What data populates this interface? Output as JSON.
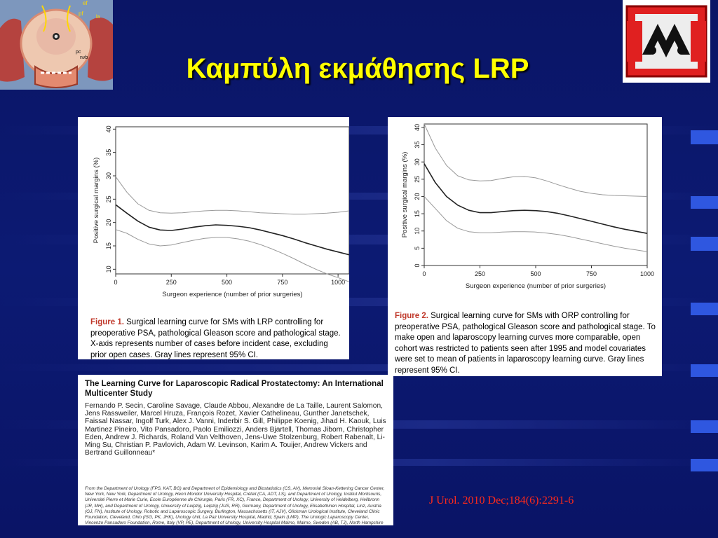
{
  "slide": {
    "title": "Καμπύλη εκμάθησης LRP",
    "citation": "J Urol. 2010 Dec;184(6):2291-6"
  },
  "anatomy": {
    "labels": [
      "ef",
      "pf",
      "la",
      "pc",
      "nvb"
    ]
  },
  "figure1": {
    "caption_label": "Figure 1.",
    "caption_text": "Surgical learning curve for SMs with LRP controlling for preoperative PSA, pathological Gleason score and pathological stage. X-axis represents number of cases before incident case, excluding prior open cases. Gray lines represent 95% CI."
  },
  "figure2": {
    "caption_label": "Figure 2.",
    "caption_text": "Surgical learning curve for SMs with ORP controlling for preoperative PSA, pathological Gleason score and pathological stage. To make open and laparoscopy learning curves more comparable, open cohort was restricted to patients seen after 1995 and model covariates were set to mean of patients in laparoscopy learning curve. Gray lines represent 95% CI."
  },
  "paper": {
    "title": "The Learning Curve for Laparoscopic Radical Prostatectomy: An International Multicenter Study",
    "authors": "Fernando P. Secin, Caroline Savage, Claude Abbou, Alexandre de La Taille, Laurent Salomon, Jens Rassweiler, Marcel Hruza, François Rozet, Xavier Cathelineau, Gunther Janetschek, Faissal Nassar, Ingolf Turk, Alex J. Vanni, Inderbir S. Gill, Philippe Koenig, Jihad H. Kaouk, Luis Martinez Pineiro, Vito Pansadoro, Paolo Emiliozzi, Anders Bjartell, Thomas Jiborn, Christopher Eden, Andrew J. Richards, Roland Van Velthoven, Jens-Uwe Stolzenburg, Robert Rabenalt, Li-Ming Su, Christian P. Pavlovich, Adam W. Levinson, Karim A. Touijer, Andrew Vickers and Bertrand Guillonneau*",
    "affiliations": "From the Department of Urology (FPS, KAT, BG) and Department of Epidemiology and Biostatistics (CS, AV), Memorial Sloan-Kettering Cancer Center, New York, New York, Department of Urology, Henri Mondor University Hospital, Créteil (CA, ADT, LS), and Department of Urology, Institut Montsouris, Université Pierre et Marie Curie, Ecole Européenne de Chirurgie, Paris (FR, XC), France, Department of Urology, University of Heidelberg, Heilbronn (JR, MH), and Department of Urology, University of Leipzig, Leipzig (JUS, RR), Germany, Department of Urology, Elisabethinen Hospital, Linz, Austria (GJ, FN), Institute of Urology, Robotic and Laparoscopic Surgery, Burlington, Massachusetts (IT, AJV), Glickman Urological Institute, Cleveland Clinic Foundation, Cleveland, Ohio (ISG, PK, JHK), Urology Unit, La Paz University Hospital, Madrid, Spain (LMP), The Urologic Laparoscopy Center, Vincenzo Pansadoro Foundation, Rome, Italy (VP, PE), Department of Urology, University Hospital Malmo, Malmo, Sweden (AB, TJ), North Hampshire Hospital, Basingstoke, United Kingdom (CE, AJR), Department of Urology, Jules Bordet Institute, Brussels, Belgium (RVV), and Department of Urology, The Johns Hopkins University School of Medicine, Baltimore, Maryland (LMS, CPP, AWL)"
  },
  "chart_data": [
    {
      "type": "line",
      "xlabel": "Surgeon experience (number of prior surgeries)",
      "ylabel": "Positive surgical margins (%)",
      "xlim": [
        0,
        1050
      ],
      "ylim": [
        9,
        40.5
      ],
      "xticks": [
        0,
        250,
        500,
        750,
        1000
      ],
      "yticks": [
        10,
        15,
        20,
        25,
        30,
        35,
        40
      ],
      "grid": false,
      "series": [
        {
          "role": "estimate",
          "color": "#222222",
          "x": [
            0,
            50,
            100,
            150,
            200,
            250,
            300,
            350,
            400,
            450,
            500,
            550,
            600,
            650,
            700,
            750,
            800,
            850,
            900,
            950,
            1000,
            1050
          ],
          "y": [
            23.8,
            22.0,
            20.3,
            19.0,
            18.4,
            18.3,
            18.6,
            19.0,
            19.3,
            19.5,
            19.4,
            19.2,
            18.9,
            18.4,
            17.8,
            17.2,
            16.5,
            15.7,
            15.0,
            14.3,
            13.7,
            13.1
          ]
        },
        {
          "role": "ci-upper",
          "color": "#999999",
          "x": [
            0,
            50,
            100,
            150,
            200,
            250,
            300,
            350,
            400,
            450,
            500,
            550,
            600,
            650,
            700,
            750,
            800,
            850,
            900,
            950,
            1000,
            1050
          ],
          "y": [
            29.8,
            26.5,
            24.0,
            22.6,
            22.1,
            22.0,
            22.1,
            22.3,
            22.5,
            22.6,
            22.6,
            22.5,
            22.3,
            22.1,
            22.0,
            21.9,
            21.8,
            21.8,
            21.9,
            22.0,
            22.2,
            22.5
          ]
        },
        {
          "role": "ci-lower",
          "color": "#999999",
          "x": [
            0,
            50,
            100,
            150,
            200,
            250,
            300,
            350,
            400,
            450,
            500,
            550,
            600,
            650,
            700,
            750,
            800,
            850,
            900,
            950,
            1000,
            1050
          ],
          "y": [
            18.5,
            17.7,
            16.4,
            15.4,
            15.0,
            15.2,
            15.7,
            16.2,
            16.6,
            16.8,
            16.8,
            16.5,
            16.0,
            15.3,
            14.4,
            13.4,
            12.3,
            11.1,
            10.0,
            9.0,
            8.2,
            7.3
          ]
        }
      ]
    },
    {
      "type": "line",
      "xlabel": "Surgeon experience (number of prior surgeries)",
      "ylabel": "Positive surgical margins (%)",
      "xlim": [
        0,
        1000
      ],
      "ylim": [
        0,
        41
      ],
      "xticks": [
        0,
        250,
        500,
        750,
        1000
      ],
      "yticks": [
        0,
        5,
        10,
        15,
        20,
        25,
        30,
        35,
        40
      ],
      "grid": false,
      "series": [
        {
          "role": "estimate",
          "color": "#222222",
          "x": [
            0,
            50,
            100,
            150,
            200,
            250,
            300,
            350,
            400,
            450,
            500,
            550,
            600,
            650,
            700,
            750,
            800,
            850,
            900,
            950,
            1000
          ],
          "y": [
            29.5,
            24.0,
            20.0,
            17.5,
            16.0,
            15.3,
            15.3,
            15.6,
            15.9,
            16.0,
            15.9,
            15.6,
            15.1,
            14.4,
            13.6,
            12.8,
            12.0,
            11.2,
            10.5,
            9.9,
            9.3
          ]
        },
        {
          "role": "ci-upper",
          "color": "#999999",
          "x": [
            0,
            50,
            100,
            150,
            200,
            250,
            300,
            350,
            400,
            450,
            500,
            550,
            600,
            650,
            700,
            750,
            800,
            850,
            900,
            950,
            1000
          ],
          "y": [
            41.0,
            34.0,
            29.0,
            26.0,
            24.8,
            24.5,
            24.6,
            25.2,
            25.7,
            25.8,
            25.4,
            24.5,
            23.4,
            22.4,
            21.5,
            20.9,
            20.5,
            20.3,
            20.2,
            20.1,
            20.0
          ]
        },
        {
          "role": "ci-lower",
          "color": "#999999",
          "x": [
            0,
            50,
            100,
            150,
            200,
            250,
            300,
            350,
            400,
            450,
            500,
            550,
            600,
            650,
            700,
            750,
            800,
            850,
            900,
            950,
            1000
          ],
          "y": [
            20.0,
            16.5,
            13.0,
            10.8,
            9.8,
            9.5,
            9.5,
            9.7,
            9.8,
            9.8,
            9.7,
            9.4,
            9.0,
            8.4,
            7.7,
            7.0,
            6.3,
            5.6,
            5.0,
            4.5,
            4.0
          ]
        }
      ]
    }
  ]
}
